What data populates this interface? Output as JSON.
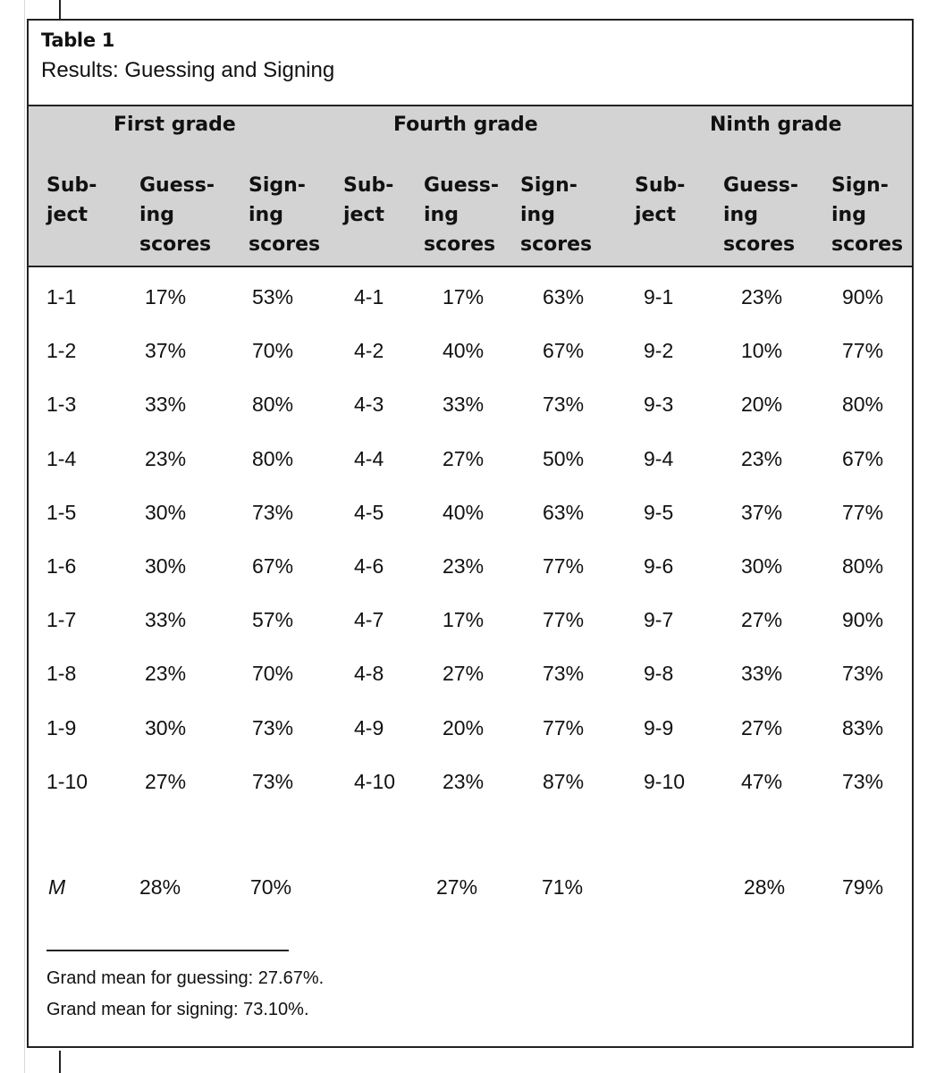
{
  "table": {
    "label": "Table 1",
    "title": "Results: Guessing and Signing",
    "grades": [
      "First grade",
      "Fourth grade",
      "Ninth grade"
    ],
    "column_headers": [
      [
        "Sub-",
        "ject"
      ],
      [
        "Guess-",
        "ing",
        "scores"
      ],
      [
        "Sign-",
        "ing",
        "scores"
      ]
    ],
    "rows": [
      [
        "1-1",
        "17%",
        "53%",
        "4-1",
        "17%",
        "63%",
        "9-1",
        "23%",
        "90%"
      ],
      [
        "1-2",
        "37%",
        "70%",
        "4-2",
        "40%",
        "67%",
        "9-2",
        "10%",
        "77%"
      ],
      [
        "1-3",
        "33%",
        "80%",
        "4-3",
        "33%",
        "73%",
        "9-3",
        "20%",
        "80%"
      ],
      [
        "1-4",
        "23%",
        "80%",
        "4-4",
        "27%",
        "50%",
        "9-4",
        "23%",
        "67%"
      ],
      [
        "1-5",
        "30%",
        "73%",
        "4-5",
        "40%",
        "63%",
        "9-5",
        "37%",
        "77%"
      ],
      [
        "1-6",
        "30%",
        "67%",
        "4-6",
        "23%",
        "77%",
        "9-6",
        "30%",
        "80%"
      ],
      [
        "1-7",
        "33%",
        "57%",
        "4-7",
        "17%",
        "77%",
        "9-7",
        "27%",
        "90%"
      ],
      [
        "1-8",
        "23%",
        "70%",
        "4-8",
        "27%",
        "73%",
        "9-8",
        "33%",
        "73%"
      ],
      [
        "1-9",
        "30%",
        "73%",
        "4-9",
        "20%",
        "77%",
        "9-9",
        "27%",
        "83%"
      ],
      [
        "1-10",
        "27%",
        "73%",
        "4-10",
        "23%",
        "87%",
        "9-10",
        "47%",
        "73%"
      ]
    ],
    "mean_label": "M",
    "means": [
      "28%",
      "70%",
      "27%",
      "71%",
      "28%",
      "79%"
    ],
    "notes": [
      "Grand mean for guessing:  27.67%.",
      "Grand mean for signing:  73.10%."
    ]
  }
}
